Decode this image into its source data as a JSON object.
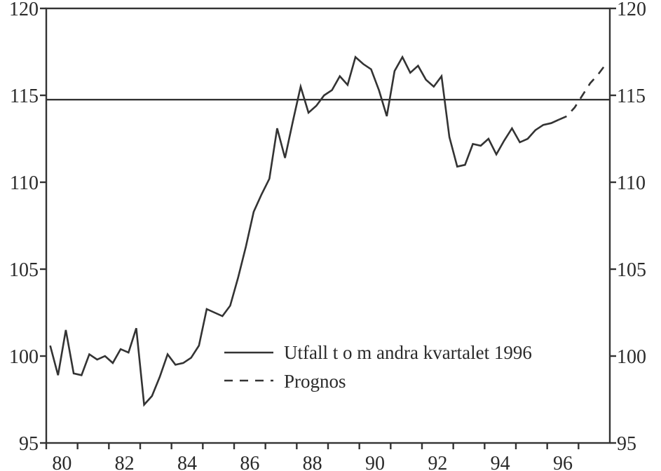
{
  "chart_data": {
    "type": "line",
    "title": "",
    "xlabel": "",
    "ylabel": "",
    "ylim": [
      95,
      120
    ],
    "xlim": [
      1980,
      1998
    ],
    "yticks": [
      95,
      100,
      105,
      110,
      115,
      120
    ],
    "xtick_labels": [
      "80",
      "82",
      "84",
      "86",
      "88",
      "90",
      "92",
      "94",
      "96"
    ],
    "grid": false,
    "reference_line": 114.75,
    "legend_position": "bottom-right",
    "line_color": "#333333",
    "series": [
      {
        "name": "Utfall t o m andra kvartalet 1996",
        "style": "solid",
        "start": "1980Q1",
        "frequency": "quarterly",
        "values": [
          100.6,
          98.9,
          101.5,
          99.0,
          98.9,
          100.1,
          99.8,
          100.0,
          99.6,
          100.4,
          100.2,
          101.6,
          97.2,
          97.7,
          98.8,
          100.1,
          99.5,
          99.6,
          99.9,
          100.6,
          102.7,
          102.5,
          102.3,
          102.9,
          104.5,
          106.3,
          108.3,
          109.3,
          110.2,
          113.1,
          111.4,
          113.5,
          115.5,
          114.0,
          114.4,
          115.0,
          115.3,
          116.1,
          115.6,
          117.2,
          116.8,
          116.5,
          115.3,
          113.8,
          116.4,
          117.2,
          116.3,
          116.7,
          115.9,
          115.5,
          116.1,
          112.6,
          110.9,
          111.0,
          112.2,
          112.1,
          112.5,
          111.6,
          112.4,
          113.1,
          112.3,
          112.5,
          113.0,
          113.3,
          113.4,
          113.6
        ]
      },
      {
        "name": "Prognos",
        "style": "dashed",
        "start": "1996Q2",
        "frequency": "quarterly",
        "values": [
          113.6,
          113.8,
          114.3,
          115.0,
          115.7,
          116.2,
          116.8
        ]
      }
    ]
  }
}
